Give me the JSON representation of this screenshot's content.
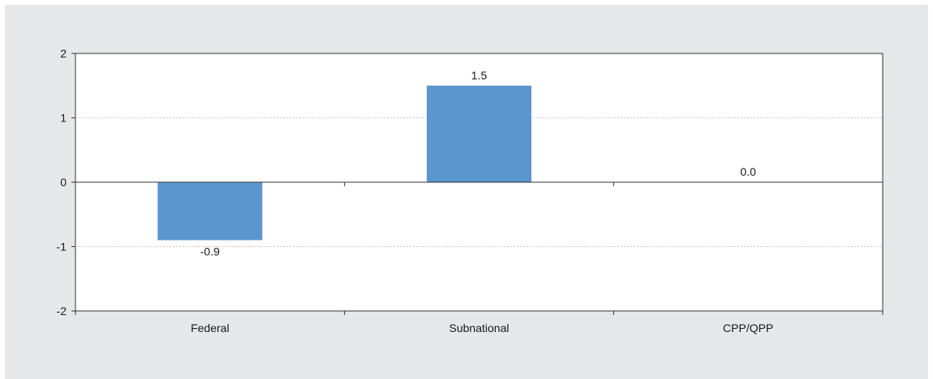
{
  "chart_data": {
    "type": "bar",
    "title": "",
    "xlabel": "",
    "ylabel": "",
    "categories": [
      "Federal",
      "Subnational",
      "CPP/QPP"
    ],
    "values": [
      -0.9,
      1.5,
      0.0
    ],
    "data_labels": [
      "-0.9",
      "1.5",
      "0.0"
    ],
    "ylim": [
      -2,
      2
    ],
    "yticks": [
      2,
      1,
      0,
      -1,
      -2
    ],
    "ytick_labels": [
      "2",
      "1",
      "0",
      "-1",
      "-2"
    ],
    "grid": true,
    "legend": "none",
    "colors": {
      "bar": "#5b96cf",
      "panel_background": "#e6e7e8",
      "plot_background": "#ffffff",
      "gridline": "#c8c8c8",
      "axis": "#333333"
    }
  }
}
